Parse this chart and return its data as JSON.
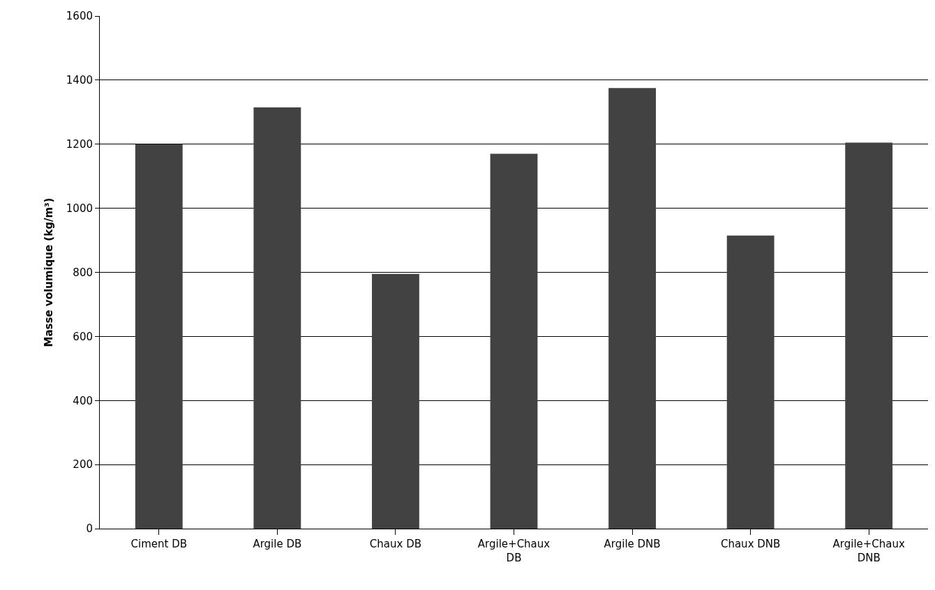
{
  "chart_data": {
    "type": "bar",
    "ylabel": "Masse volumique (kg/m³)",
    "categories": [
      "Ciment DB",
      "Argile DB",
      "Chaux DB",
      "Argile+Chaux DB",
      "Argile DNB",
      "Chaux DNB",
      "Argile+Chaux DNB"
    ],
    "values": [
      1200,
      1315,
      795,
      1170,
      1375,
      915,
      1205
    ],
    "color": "#424242",
    "ylim": [
      0,
      1600
    ],
    "yticks": [
      0,
      200,
      400,
      600,
      800,
      1000,
      1200,
      1400,
      1600
    ],
    "grid": "y",
    "legend": false
  }
}
